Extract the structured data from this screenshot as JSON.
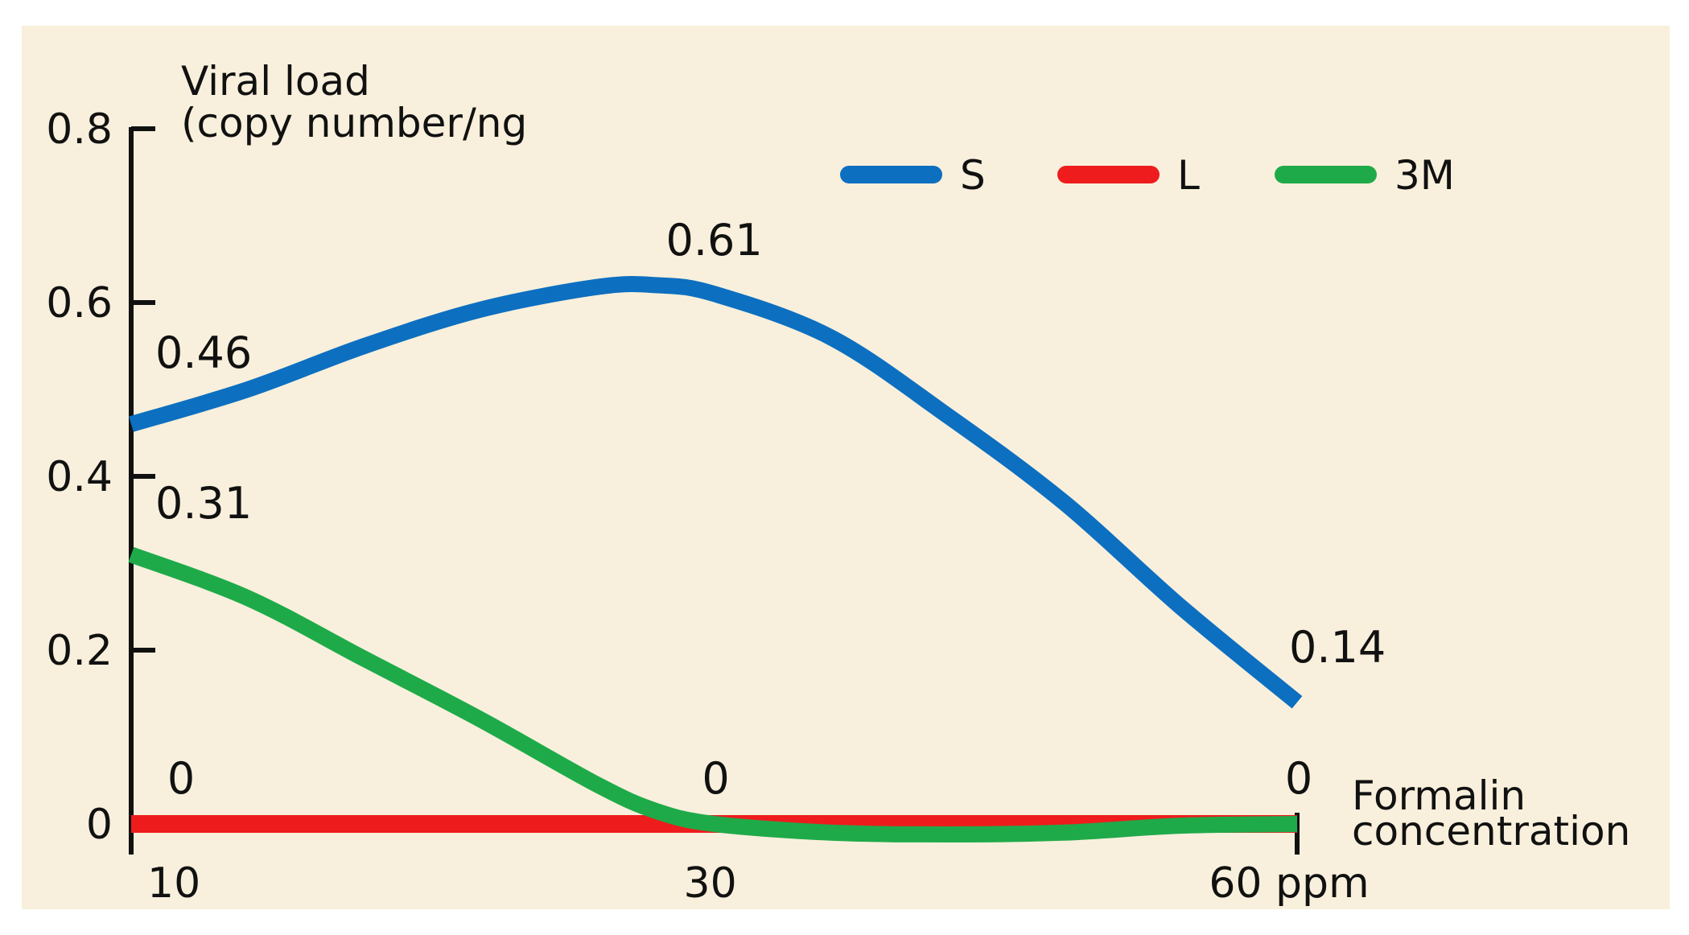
{
  "chart_data": {
    "type": "line",
    "title": "",
    "ylabel": [
      "Viral load",
      "(copy number/ng"
    ],
    "xlabel": [
      "Formalin",
      "concentration"
    ],
    "y_ticks": [
      0,
      0.2,
      0.4,
      0.6,
      0.8
    ],
    "y_tick_labels": [
      "0",
      "0.2",
      "0.4",
      "0.6",
      "0.8"
    ],
    "x_ticks": [
      10,
      30,
      60
    ],
    "x_tick_labels": [
      "10",
      "30",
      "60 ppm"
    ],
    "ylim": [
      0,
      0.8
    ],
    "x_positions": {
      "10": 0,
      "30": 0.5,
      "60": 1
    },
    "legend_position": "top-right",
    "series": [
      {
        "name": "S",
        "color": "#0d6fc0",
        "x": [
          10,
          30,
          60
        ],
        "values": [
          0.46,
          0.61,
          0.14
        ],
        "curve": [
          [
            0,
            0.46
          ],
          [
            0.1,
            0.5
          ],
          [
            0.2,
            0.55
          ],
          [
            0.3,
            0.592
          ],
          [
            0.4,
            0.618
          ],
          [
            0.45,
            0.62
          ],
          [
            0.5,
            0.61
          ],
          [
            0.6,
            0.56
          ],
          [
            0.7,
            0.47
          ],
          [
            0.8,
            0.37
          ],
          [
            0.9,
            0.25
          ],
          [
            1,
            0.14
          ]
        ]
      },
      {
        "name": "L",
        "color": "#ee1c1c",
        "x": [
          10,
          30,
          60
        ],
        "values": [
          0,
          0,
          0
        ],
        "curve": [
          [
            0,
            0
          ],
          [
            1,
            0
          ]
        ]
      },
      {
        "name": "3M",
        "color": "#1faa4a",
        "x": [
          10,
          30,
          60
        ],
        "values": [
          0.31,
          0,
          0
        ],
        "curve": [
          [
            0,
            0.31
          ],
          [
            0.1,
            0.26
          ],
          [
            0.2,
            0.19
          ],
          [
            0.3,
            0.12
          ],
          [
            0.4,
            0.045
          ],
          [
            0.45,
            0.015
          ],
          [
            0.5,
            0
          ],
          [
            0.6,
            -0.01
          ],
          [
            0.7,
            -0.012
          ],
          [
            0.8,
            -0.01
          ],
          [
            0.9,
            -0.002
          ],
          [
            1,
            0
          ]
        ]
      }
    ],
    "data_labels": [
      {
        "text": "0.46",
        "series": "S",
        "x": 10,
        "y": 0.46
      },
      {
        "text": "0.61",
        "series": "S",
        "x": 30,
        "y": 0.61
      },
      {
        "text": "0.14",
        "series": "S",
        "x": 60,
        "y": 0.14
      },
      {
        "text": "0.31",
        "series": "3M",
        "x": 10,
        "y": 0.31
      },
      {
        "text": "0",
        "series": "L",
        "x": 10,
        "y": 0
      },
      {
        "text": "0",
        "series": "L",
        "x": 30,
        "y": 0
      },
      {
        "text": "0",
        "series": "L",
        "x": 60,
        "y": 0
      }
    ]
  }
}
